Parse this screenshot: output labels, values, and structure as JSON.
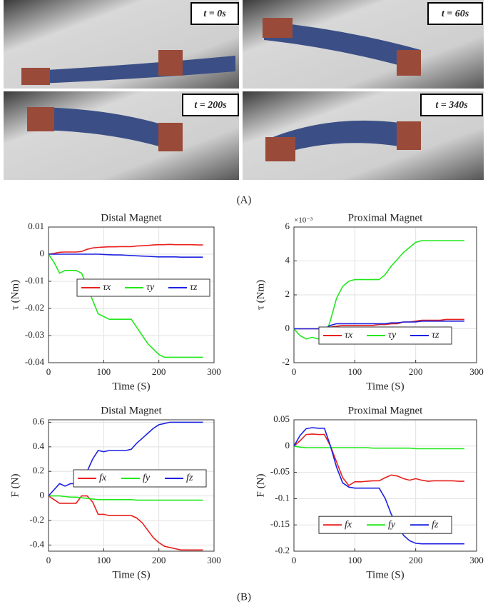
{
  "photos": [
    {
      "label": "t = 0s"
    },
    {
      "label": "t = 60s"
    },
    {
      "label": "t = 200s"
    },
    {
      "label": "t = 340s"
    }
  ],
  "panel_labels": [
    "(A)",
    "(B)"
  ],
  "chart_data": [
    {
      "type": "line",
      "title": "Distal Magnet",
      "x_label": "Time (S)",
      "y_label": "τ (Nm)",
      "xlim": [
        0,
        300
      ],
      "xticks": [
        0,
        100,
        200,
        300
      ],
      "ylim": [
        -0.04,
        0.01
      ],
      "yticks": [
        -0.04,
        -0.03,
        -0.02,
        -0.01,
        0,
        0.01
      ],
      "grid": true,
      "legend": "center-right",
      "x": [
        0,
        10,
        20,
        30,
        40,
        50,
        60,
        70,
        80,
        90,
        100,
        110,
        120,
        130,
        140,
        150,
        160,
        170,
        180,
        190,
        200,
        210,
        220,
        230,
        240,
        250,
        260,
        270,
        280
      ],
      "series": [
        {
          "name": "τx",
          "color": "#e8201c",
          "values": [
            0,
            0.0003,
            0.0007,
            0.0008,
            0.0008,
            0.0008,
            0.001,
            0.0018,
            0.0023,
            0.0025,
            0.0026,
            0.0027,
            0.0027,
            0.0028,
            0.0028,
            0.0028,
            0.003,
            0.0031,
            0.0032,
            0.0034,
            0.0035,
            0.0035,
            0.0036,
            0.0035,
            0.0035,
            0.0035,
            0.0035,
            0.0034,
            0.0034
          ]
        },
        {
          "name": "τy",
          "color": "#22e81c",
          "values": [
            0,
            -0.003,
            -0.007,
            -0.006,
            -0.006,
            -0.006,
            -0.007,
            -0.012,
            -0.017,
            -0.022,
            -0.023,
            -0.024,
            -0.024,
            -0.024,
            -0.024,
            -0.024,
            -0.027,
            -0.03,
            -0.033,
            -0.035,
            -0.037,
            -0.038,
            -0.038,
            -0.038,
            -0.038,
            -0.038,
            -0.038,
            -0.038,
            -0.038
          ]
        },
        {
          "name": "τz",
          "color": "#1c22e0",
          "values": [
            0,
            0,
            0,
            0,
            0,
            0,
            0,
            0,
            0,
            0,
            -0.0001,
            -0.0002,
            -0.0003,
            -0.0003,
            -0.0004,
            -0.0005,
            -0.0006,
            -0.0007,
            -0.0008,
            -0.0009,
            -0.001,
            -0.001,
            -0.001,
            -0.001,
            -0.0011,
            -0.0011,
            -0.0011,
            -0.0011,
            -0.0011
          ]
        }
      ]
    },
    {
      "type": "line",
      "title": "Proximal Magnet",
      "x_label": "Time (S)",
      "y_label": "τ (Nm)",
      "y_exponent_label": "×10⁻³",
      "xlim": [
        0,
        300
      ],
      "xticks": [
        0,
        100,
        200,
        300
      ],
      "ylim": [
        -2,
        6
      ],
      "yticks": [
        -2,
        0,
        2,
        4,
        6
      ],
      "grid": true,
      "legend": "lower-center",
      "x": [
        0,
        10,
        20,
        30,
        40,
        50,
        60,
        70,
        80,
        90,
        100,
        110,
        120,
        130,
        140,
        150,
        160,
        170,
        180,
        190,
        200,
        210,
        220,
        230,
        240,
        250,
        260,
        270,
        280
      ],
      "series": [
        {
          "name": "τx",
          "color": "#e8201c",
          "values": [
            0,
            0,
            0,
            0,
            0,
            0,
            0.1,
            0.15,
            0.2,
            0.2,
            0.2,
            0.2,
            0.2,
            0.2,
            0.25,
            0.25,
            0.3,
            0.3,
            0.4,
            0.4,
            0.45,
            0.5,
            0.5,
            0.5,
            0.5,
            0.55,
            0.55,
            0.55,
            0.55
          ]
        },
        {
          "name": "τy",
          "color": "#22e81c",
          "values": [
            0,
            -0.4,
            -0.6,
            -0.5,
            -0.6,
            -0.6,
            0.5,
            1.8,
            2.5,
            2.8,
            2.9,
            2.9,
            2.9,
            2.9,
            2.9,
            3.2,
            3.7,
            4.1,
            4.5,
            4.8,
            5.1,
            5.2,
            5.2,
            5.2,
            5.2,
            5.2,
            5.2,
            5.2,
            5.2
          ]
        },
        {
          "name": "τz",
          "color": "#1c22e0",
          "values": [
            0,
            0,
            0,
            0,
            0,
            0,
            0.2,
            0.3,
            0.3,
            0.3,
            0.3,
            0.3,
            0.3,
            0.3,
            0.3,
            0.3,
            0.35,
            0.35,
            0.4,
            0.4,
            0.4,
            0.45,
            0.45,
            0.45,
            0.45,
            0.45,
            0.45,
            0.45,
            0.45
          ]
        }
      ]
    },
    {
      "type": "line",
      "title": "Distal Magnet",
      "x_label": "Time (S)",
      "y_label": "F (N)",
      "xlim": [
        0,
        300
      ],
      "xticks": [
        0,
        100,
        200,
        300
      ],
      "ylim": [
        -0.45,
        0.62
      ],
      "yticks": [
        -0.4,
        -0.2,
        0,
        0.2,
        0.4,
        0.6
      ],
      "grid": true,
      "legend": "center",
      "x": [
        0,
        10,
        20,
        30,
        40,
        50,
        60,
        70,
        80,
        90,
        100,
        110,
        120,
        130,
        140,
        150,
        160,
        170,
        180,
        190,
        200,
        210,
        220,
        230,
        240,
        250,
        260,
        270,
        280
      ],
      "series": [
        {
          "name": "fx",
          "color": "#e8201c",
          "values": [
            0,
            -0.03,
            -0.06,
            -0.06,
            -0.06,
            -0.06,
            0.0,
            0.0,
            -0.05,
            -0.15,
            -0.15,
            -0.16,
            -0.16,
            -0.16,
            -0.16,
            -0.16,
            -0.18,
            -0.22,
            -0.28,
            -0.34,
            -0.38,
            -0.41,
            -0.42,
            -0.43,
            -0.44,
            -0.44,
            -0.44,
            -0.44,
            -0.44
          ]
        },
        {
          "name": "fy",
          "color": "#22e81c",
          "values": [
            0,
            0,
            0,
            -0.005,
            -0.01,
            -0.01,
            -0.015,
            -0.02,
            -0.025,
            -0.03,
            -0.03,
            -0.03,
            -0.03,
            -0.03,
            -0.03,
            -0.03,
            -0.035,
            -0.035,
            -0.035,
            -0.035,
            -0.035,
            -0.035,
            -0.035,
            -0.035,
            -0.035,
            -0.035,
            -0.035,
            -0.035,
            -0.035
          ]
        },
        {
          "name": "fz",
          "color": "#1c22e0",
          "values": [
            0,
            0.05,
            0.1,
            0.08,
            0.1,
            0.1,
            0.13,
            0.2,
            0.3,
            0.37,
            0.36,
            0.37,
            0.37,
            0.37,
            0.37,
            0.38,
            0.43,
            0.47,
            0.51,
            0.55,
            0.58,
            0.59,
            0.6,
            0.6,
            0.6,
            0.6,
            0.6,
            0.6,
            0.6
          ]
        }
      ]
    },
    {
      "type": "line",
      "title": "Proximal Magnet",
      "x_label": "Time (S)",
      "y_label": "F (N)",
      "xlim": [
        0,
        300
      ],
      "xticks": [
        0,
        100,
        200,
        300
      ],
      "ylim": [
        -0.2,
        0.05
      ],
      "yticks": [
        -0.2,
        -0.15,
        -0.1,
        -0.05,
        0,
        0.05
      ],
      "grid": true,
      "legend": "lower-center",
      "x": [
        0,
        10,
        20,
        30,
        40,
        50,
        60,
        70,
        80,
        90,
        100,
        110,
        120,
        130,
        140,
        150,
        160,
        170,
        180,
        190,
        200,
        210,
        220,
        230,
        240,
        250,
        260,
        270,
        280
      ],
      "series": [
        {
          "name": "fx",
          "color": "#e8201c",
          "values": [
            0,
            0.01,
            0.022,
            0.023,
            0.022,
            0.022,
            0.0,
            -0.03,
            -0.06,
            -0.075,
            -0.068,
            -0.068,
            -0.067,
            -0.066,
            -0.066,
            -0.06,
            -0.055,
            -0.057,
            -0.062,
            -0.065,
            -0.062,
            -0.065,
            -0.067,
            -0.066,
            -0.066,
            -0.066,
            -0.066,
            -0.067,
            -0.067
          ]
        },
        {
          "name": "fy",
          "color": "#22e81c",
          "values": [
            0,
            -0.002,
            -0.003,
            -0.003,
            -0.003,
            -0.003,
            -0.003,
            -0.003,
            -0.003,
            -0.003,
            -0.003,
            -0.003,
            -0.003,
            -0.004,
            -0.004,
            -0.004,
            -0.004,
            -0.004,
            -0.004,
            -0.004,
            -0.005,
            -0.005,
            -0.005,
            -0.005,
            -0.005,
            -0.005,
            -0.005,
            -0.005,
            -0.005
          ]
        },
        {
          "name": "fz",
          "color": "#1c22e0",
          "values": [
            0,
            0.02,
            0.033,
            0.035,
            0.034,
            0.034,
            0.0,
            -0.04,
            -0.07,
            -0.078,
            -0.08,
            -0.08,
            -0.08,
            -0.08,
            -0.08,
            -0.1,
            -0.13,
            -0.15,
            -0.17,
            -0.18,
            -0.185,
            -0.186,
            -0.186,
            -0.186,
            -0.186,
            -0.186,
            -0.186,
            -0.186,
            -0.186
          ]
        }
      ]
    }
  ]
}
